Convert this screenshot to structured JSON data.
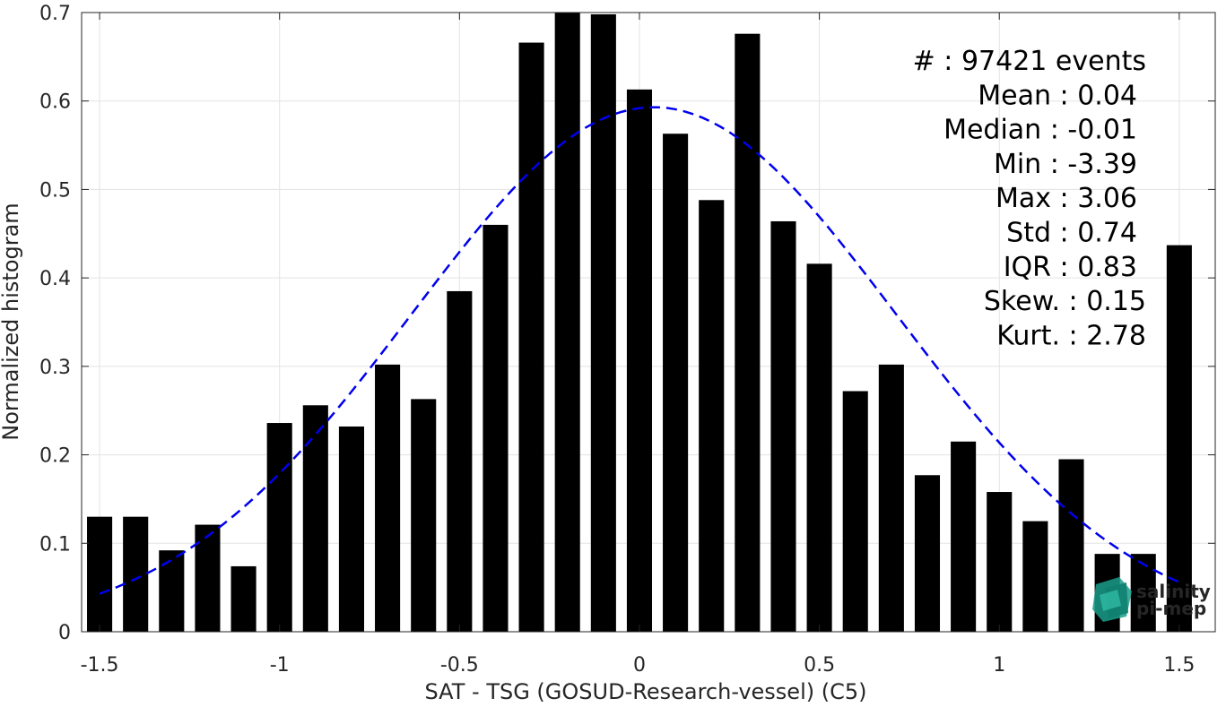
{
  "chart_data": {
    "type": "bar",
    "title": "",
    "xlabel": "SAT - TSG (GOSUD-Research-vessel) (C5)",
    "ylabel": "Normalized histogram",
    "xlim": [
      -1.55,
      1.6
    ],
    "ylim": [
      0,
      0.7
    ],
    "grid": true,
    "bar_width": 0.07,
    "x_ticks": [
      -1.5,
      -1,
      -0.5,
      0,
      0.5,
      1,
      1.5
    ],
    "x_tick_labels": [
      "-1.5",
      "-1",
      "-0.5",
      "0",
      "0.5",
      "1",
      "1.5"
    ],
    "y_ticks": [
      0,
      0.1,
      0.2,
      0.3,
      0.4,
      0.5,
      0.6,
      0.7
    ],
    "y_tick_labels": [
      "0",
      "0.1",
      "0.2",
      "0.3",
      "0.4",
      "0.5",
      "0.6",
      "0.7"
    ],
    "x": [
      -1.5,
      -1.4,
      -1.3,
      -1.2,
      -1.1,
      -1.0,
      -0.9,
      -0.8,
      -0.7,
      -0.6,
      -0.5,
      -0.4,
      -0.3,
      -0.2,
      -0.1,
      0.0,
      0.1,
      0.2,
      0.3,
      0.4,
      0.5,
      0.6,
      0.7,
      0.8,
      0.9,
      1.0,
      1.1,
      1.2,
      1.3,
      1.4,
      1.5
    ],
    "values": [
      0.13,
      0.13,
      0.092,
      0.121,
      0.074,
      0.236,
      0.256,
      0.232,
      0.302,
      0.263,
      0.385,
      0.46,
      0.666,
      0.7,
      0.698,
      0.613,
      0.563,
      0.488,
      0.676,
      0.464,
      0.416,
      0.272,
      0.302,
      0.177,
      0.215,
      0.158,
      0.125,
      0.195,
      0.088,
      0.088,
      0.437
    ],
    "bar_color": "#000000",
    "fit_curve": {
      "style": "dashed",
      "color": "#0000ee",
      "mean": 0.04,
      "std": 0.672,
      "amplitude": 0.593,
      "x_range": [
        -1.5,
        1.5
      ]
    },
    "stats": [
      {
        "label": "#  : 97421 events"
      },
      {
        "label": "Mean : 0.04"
      },
      {
        "label": "Median : -0.01"
      },
      {
        "label": "Min : -3.39"
      },
      {
        "label": "Max : 3.06"
      },
      {
        "label": "Std : 0.74"
      },
      {
        "label": "IQR : 0.83"
      },
      {
        "label": "Skew. : 0.15"
      },
      {
        "label": "Kurt. : 2.78"
      }
    ]
  },
  "logo": {
    "line1": "salinity",
    "line2": "pi-mep",
    "color": "#1a9e8c"
  }
}
